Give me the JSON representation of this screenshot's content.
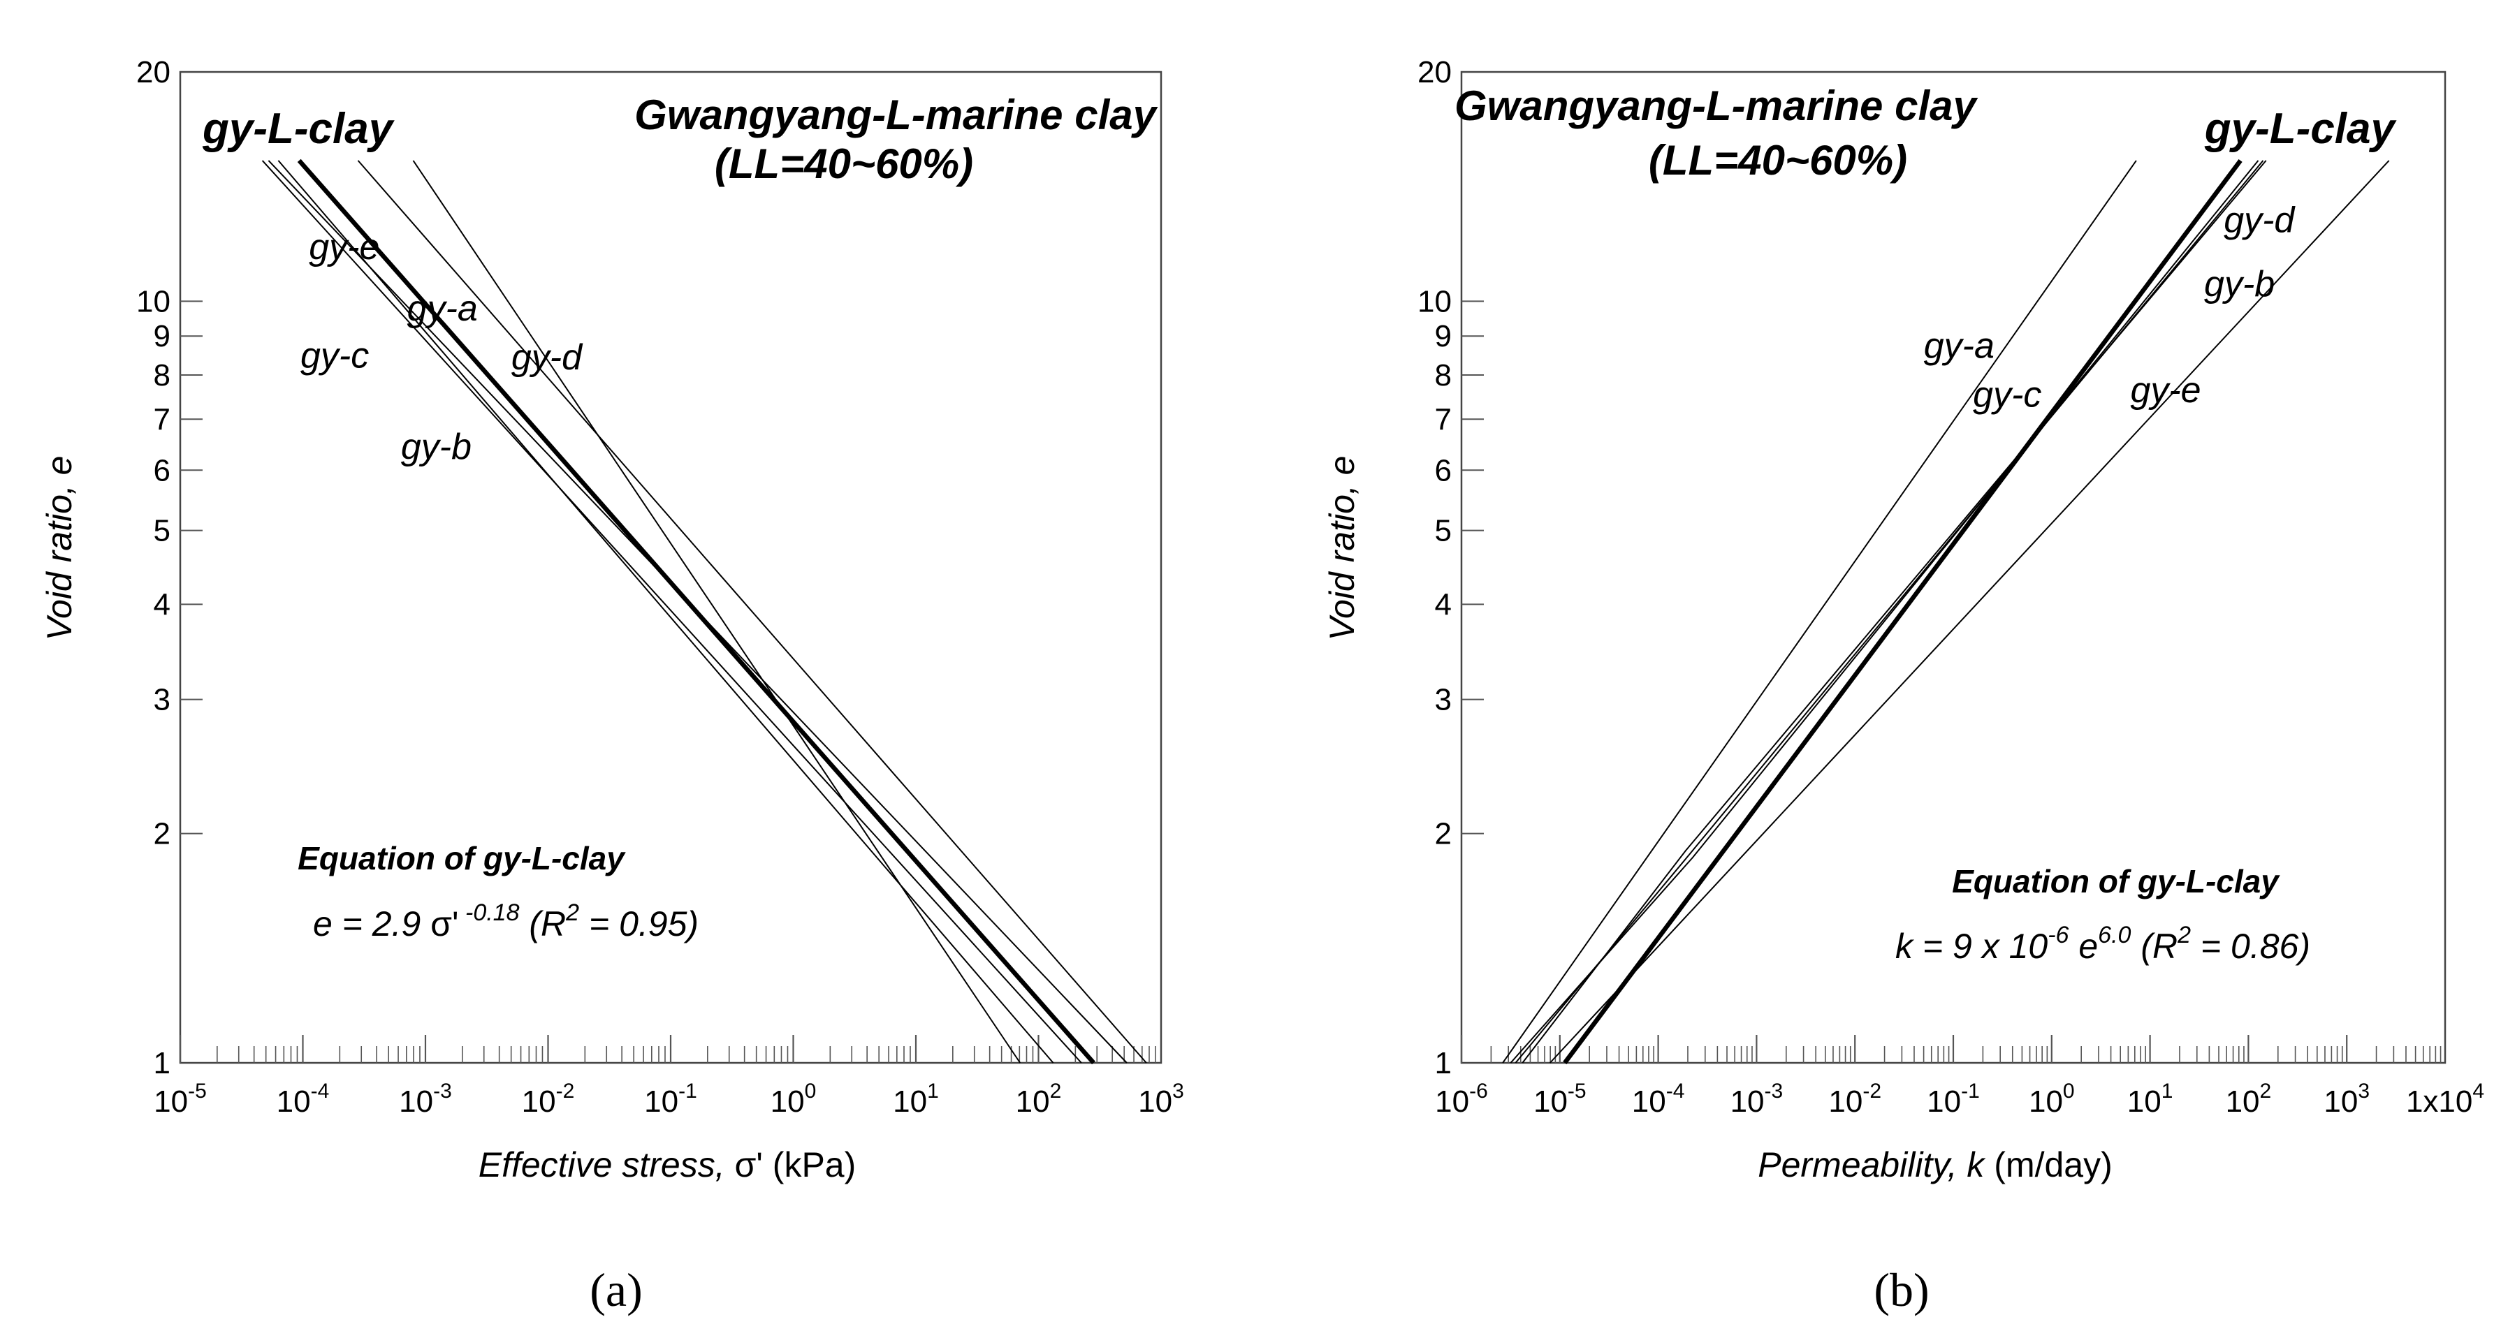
{
  "chart_data": [
    {
      "id": "a",
      "type": "line",
      "panel_label": "(a)",
      "x_scale": "log",
      "y_scale": "log",
      "xlim_exp": [
        -5,
        3
      ],
      "ylim": [
        1,
        20
      ],
      "x_tick_exponents": [
        -5,
        -4,
        -3,
        -2,
        -1,
        0,
        1,
        2,
        3
      ],
      "x_tick_labels": [
        "10",
        "10",
        "10",
        "10",
        "10",
        "10",
        "10",
        "10",
        "10"
      ],
      "x_tick_sups": [
        "-5",
        "-4",
        "-3",
        "-2",
        "-1",
        "0",
        "1",
        "2",
        "3"
      ],
      "y_ticks": [
        1,
        2,
        3,
        4,
        5,
        6,
        7,
        8,
        9,
        10,
        20
      ],
      "y_tick_labels": [
        "1",
        "2",
        "3",
        "4",
        "5",
        "6",
        "7",
        "8",
        "9",
        "10",
        "20"
      ],
      "xlabel_italic": "Effective stress, ",
      "xlabel_symbol": "σ'",
      "xlabel_unit": " (kPa)",
      "ylabel": "Void ratio, e",
      "title_line1": "Gwangyang-L-marine clay",
      "title_line2": "(LL=40~60%)",
      "reference_label": "gy-L-clay",
      "equation_title": "Equation of gy-L-clay",
      "equation": {
        "lhs": "e = 2.9 ",
        "sym": "σ'",
        "sup": " -0.18",
        "r_open": " (R",
        "r_sup": "2",
        "r_close": " = 0.95)"
      },
      "series": [
        {
          "name": "gy-L-clay",
          "bold": true,
          "x_exp": [
            -4.03,
            2.45
          ],
          "y": [
            15.3,
            1.0
          ]
        },
        {
          "name": "gy-e",
          "bold": false,
          "x_exp": [
            -3.55,
            2.88
          ],
          "y": [
            15.3,
            1.0
          ]
        },
        {
          "name": "gy-a",
          "bold": false,
          "x_exp": [
            -3.1,
            1.85
          ],
          "y": [
            15.3,
            1.0
          ]
        },
        {
          "name": "gy-c",
          "bold": false,
          "x_exp": [
            -4.33,
            2.35
          ],
          "y": [
            15.3,
            1.0
          ]
        },
        {
          "name": "gy-b",
          "bold": false,
          "x_exp": [
            -4.2,
            2.12
          ],
          "y": [
            15.3,
            1.0
          ]
        },
        {
          "name": "gy-d",
          "bold": false,
          "x_exp": [
            -4.28,
            2.72
          ],
          "y": [
            15.3,
            1.0
          ]
        }
      ],
      "curve_labels": [
        {
          "text": "gy-e",
          "x_exp": -3.95,
          "y": 11.8
        },
        {
          "text": "gy-a",
          "x_exp": -3.15,
          "y": 9.8
        },
        {
          "text": "gy-c",
          "x_exp": -4.02,
          "y": 8.5
        },
        {
          "text": "gy-d",
          "x_exp": -2.3,
          "y": 8.45
        },
        {
          "text": "gy-b",
          "x_exp": -3.2,
          "y": 6.45
        }
      ]
    },
    {
      "id": "b",
      "type": "line",
      "panel_label": "(b)",
      "x_scale": "log",
      "y_scale": "log",
      "xlim_exp": [
        -6,
        4
      ],
      "ylim": [
        1,
        20
      ],
      "x_tick_exponents": [
        -6,
        -5,
        -4,
        -3,
        -2,
        -1,
        0,
        1,
        2,
        3,
        4
      ],
      "x_tick_labels": [
        "10",
        "10",
        "10",
        "10",
        "10",
        "10",
        "10",
        "10",
        "10",
        "10",
        "1x10"
      ],
      "x_tick_sups": [
        "-6",
        "-5",
        "-4",
        "-3",
        "-2",
        "-1",
        "0",
        "1",
        "2",
        "3",
        "4"
      ],
      "y_ticks": [
        1,
        2,
        3,
        4,
        5,
        6,
        7,
        8,
        9,
        10,
        20
      ],
      "y_tick_labels": [
        "1",
        "2",
        "3",
        "4",
        "5",
        "6",
        "7",
        "8",
        "9",
        "10",
        "20"
      ],
      "xlabel_italic": "Permeability, k",
      "xlabel_unit": " (m/day)",
      "ylabel": "Void ratio, e",
      "title_line1": "Gwangyang-L-marine clay",
      "title_line2": "(LL=40~60%)",
      "reference_label": "gy-L-clay",
      "equation_title": "Equation of gy-L-clay",
      "equation": {
        "lhs": "k = 9 x 10",
        "lhs_sup": "-6",
        "mid": " e",
        "mid_sup": "6.0",
        "r_open": " (R",
        "r_sup": "2",
        "r_close": " = 0.86)"
      },
      "series": [
        {
          "name": "gy-L-clay",
          "bold": true,
          "x_exp": [
            -4.95,
            1.92
          ],
          "y": [
            1.0,
            15.3
          ]
        },
        {
          "name": "gy-a",
          "bold": false,
          "x_exp": [
            -5.58,
            0.86
          ],
          "y": [
            1.0,
            15.3
          ]
        },
        {
          "name": "gy-c",
          "bold": false,
          "x_exp": [
            -5.38,
            2.18
          ],
          "y": [
            1.0,
            15.3
          ],
          "bend": {
            "x_exp": -3.72,
            "y": 1.9
          }
        },
        {
          "name": "gy-d",
          "bold": false,
          "x_exp": [
            -5.45,
            2.15
          ],
          "y": [
            1.0,
            15.3
          ],
          "bend": {
            "x_exp": -3.68,
            "y": 1.88
          }
        },
        {
          "name": "gy-b",
          "bold": false,
          "x_exp": [
            -5.5,
            2.1
          ],
          "y": [
            1.0,
            15.3
          ],
          "bend": {
            "x_exp": -3.65,
            "y": 1.86
          }
        },
        {
          "name": "gy-e",
          "bold": false,
          "x_exp": [
            -5.1,
            3.43
          ],
          "y": [
            1.0,
            15.3
          ]
        }
      ],
      "curve_labels": [
        {
          "text": "gy-d",
          "x_exp": 1.75,
          "y": 12.8
        },
        {
          "text": "gy-b",
          "x_exp": 1.55,
          "y": 10.55
        },
        {
          "text": "gy-a",
          "x_exp": -1.3,
          "y": 8.75
        },
        {
          "text": "gy-c",
          "x_exp": -0.8,
          "y": 7.55
        },
        {
          "text": "gy-e",
          "x_exp": 0.8,
          "y": 7.65
        }
      ]
    }
  ]
}
